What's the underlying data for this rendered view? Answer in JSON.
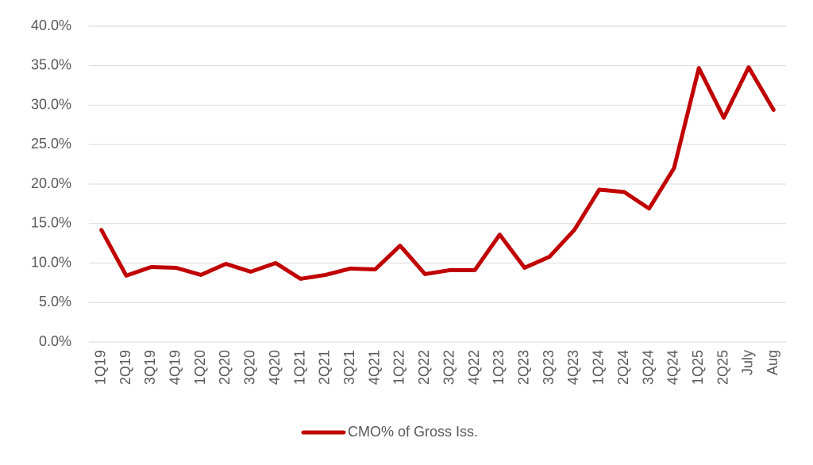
{
  "chart_data": {
    "type": "line",
    "categories": [
      "1Q19",
      "2Q19",
      "3Q19",
      "4Q19",
      "1Q20",
      "2Q20",
      "3Q20",
      "4Q20",
      "1Q21",
      "2Q21",
      "3Q21",
      "4Q21",
      "1Q22",
      "2Q22",
      "3Q22",
      "4Q22",
      "1Q23",
      "2Q23",
      "3Q23",
      "4Q23",
      "1Q24",
      "2Q24",
      "3Q24",
      "4Q24",
      "1Q25",
      "2Q25",
      "July",
      "Aug"
    ],
    "series": [
      {
        "name": "CMO% of Gross Iss.",
        "color": "#c00000",
        "values": [
          14.2,
          8.4,
          9.5,
          9.4,
          8.5,
          9.9,
          8.9,
          10.0,
          8.0,
          8.5,
          9.3,
          9.2,
          12.2,
          8.6,
          9.1,
          9.1,
          13.6,
          9.4,
          10.8,
          14.2,
          19.3,
          19.0,
          16.9,
          22.0,
          34.7,
          28.4,
          34.8,
          29.4
        ]
      }
    ],
    "ylim": [
      0,
      40
    ],
    "yticks": [
      {
        "value": 0,
        "label": "0.0%"
      },
      {
        "value": 5,
        "label": "5.0%"
      },
      {
        "value": 10,
        "label": "10.0%"
      },
      {
        "value": 15,
        "label": "15.0%"
      },
      {
        "value": 20,
        "label": "20.0%"
      },
      {
        "value": 25,
        "label": "25.0%"
      },
      {
        "value": 30,
        "label": "30.0%"
      },
      {
        "value": 35,
        "label": "35.0%"
      },
      {
        "value": 40,
        "label": "40.0%"
      }
    ],
    "grid": true,
    "legend": "bottom"
  }
}
